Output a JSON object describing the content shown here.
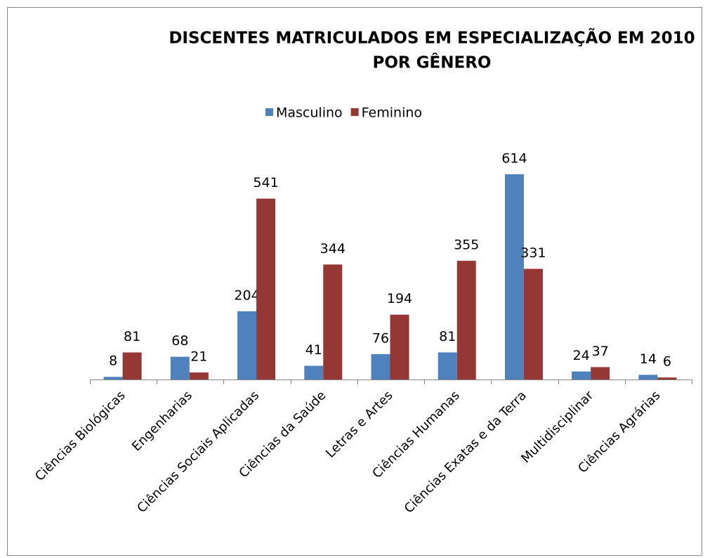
{
  "chart_data": {
    "type": "bar",
    "title": [
      "DISCENTES MATRICULADOS EM ESPECIALIZAÇÃO EM 2010",
      "POR GÊNERO"
    ],
    "categories": [
      "Ciências Biológicas",
      "Engenharias",
      "Ciências Sociais Aplicadas",
      "Ciências da Saúde",
      "Letras e Artes",
      "Ciências Humanas",
      "Ciências Exatas e da Terra",
      "Multidisciplinar",
      "Ciências Agrárias"
    ],
    "series": [
      {
        "name": "Masculino",
        "color": "#4f81bd",
        "values": [
          8,
          68,
          204,
          41,
          76,
          81,
          614,
          24,
          14
        ]
      },
      {
        "name": "Feminino",
        "color": "#953735",
        "values": [
          81,
          21,
          541,
          344,
          194,
          355,
          331,
          37,
          6
        ]
      }
    ],
    "ylim": [
      0,
      700
    ],
    "legend": "top"
  }
}
